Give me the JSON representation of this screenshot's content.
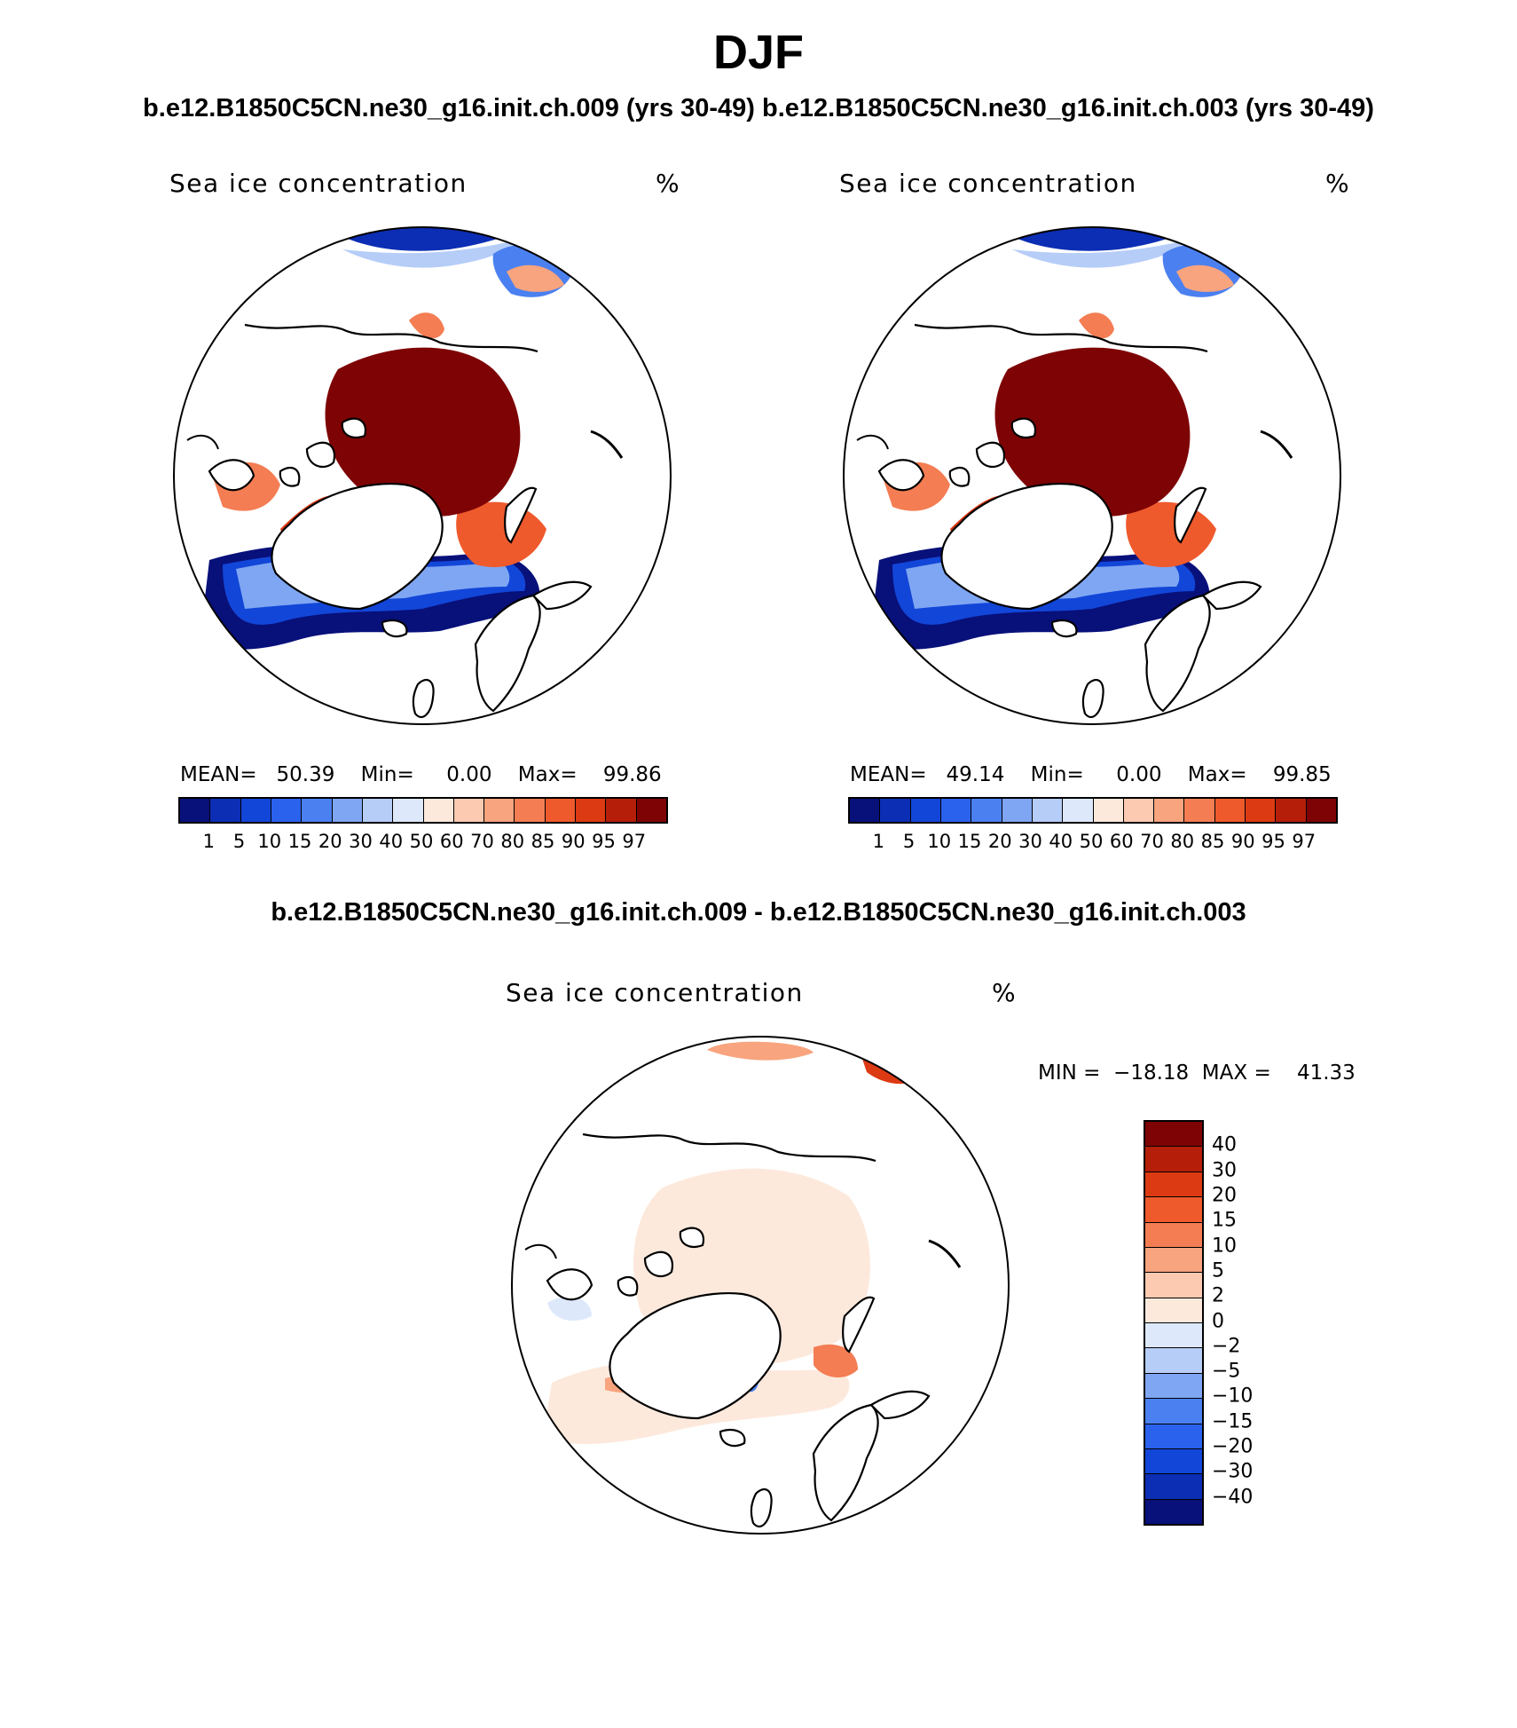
{
  "main_title": "DJF",
  "subtitle": "b.e12.B1850C5CN.ne30_g16.init.ch.009 (yrs 30-49)  b.e12.B1850C5CN.ne30_g16.init.ch.003 (yrs 30-49)",
  "diff_title": "b.e12.B1850C5CN.ne30_g16.init.ch.009 - b.e12.B1850C5CN.ne30_g16.init.ch.003",
  "colors": {
    "levels": [
      "#08107a",
      "#0c2eb4",
      "#1246d8",
      "#2a62ee",
      "#4b80f0",
      "#7fa6f2",
      "#b6cdf8",
      "#dde9fb",
      "#fde9dc",
      "#fbcab0",
      "#f8a47e",
      "#f47d53",
      "#ef5a2c",
      "#dc3a13",
      "#b51f0a",
      "#7e0305"
    ],
    "diff_levels": [
      "#7e0305",
      "#b51f0a",
      "#dc3a13",
      "#ef5a2c",
      "#f47d53",
      "#f8a47e",
      "#fbcab0",
      "#fde9dc",
      "#dde9fb",
      "#b6cdf8",
      "#7fa6f2",
      "#4b80f0",
      "#2a62ee",
      "#1246d8",
      "#0c2eb4",
      "#08107a"
    ]
  },
  "chart_data": [
    {
      "type": "heatmap",
      "projection": "north-polar-stereographic",
      "title": "Sea ice concentration",
      "units": "%",
      "case": "b.e12.B1850C5CN.ne30_g16.init.ch.009 (yrs 30-49)",
      "mean_label": "MEAN=",
      "mean": "50.39",
      "min_label": "Min=",
      "min": "0.00",
      "max_label": "Max=",
      "max": "99.86",
      "levels": [
        "1",
        "5",
        "10",
        "15",
        "20",
        "30",
        "40",
        "50",
        "60",
        "70",
        "80",
        "85",
        "90",
        "95",
        "97"
      ]
    },
    {
      "type": "heatmap",
      "projection": "north-polar-stereographic",
      "title": "Sea ice concentration",
      "units": "%",
      "case": "b.e12.B1850C5CN.ne30_g16.init.ch.003 (yrs 30-49)",
      "mean_label": "MEAN=",
      "mean": "49.14",
      "min_label": "Min=",
      "min": "0.00",
      "max_label": "Max=",
      "max": "99.85",
      "levels": [
        "1",
        "5",
        "10",
        "15",
        "20",
        "30",
        "40",
        "50",
        "60",
        "70",
        "80",
        "85",
        "90",
        "95",
        "97"
      ]
    },
    {
      "type": "heatmap",
      "projection": "north-polar-stereographic",
      "title": "Sea ice concentration",
      "units": "%",
      "case": "difference",
      "min_label": "MIN =",
      "min": "−18.18",
      "max_label": "MAX =",
      "max": "41.33",
      "levels": [
        "40",
        "30",
        "20",
        "15",
        "10",
        "5",
        "2",
        "0",
        "−2",
        "−5",
        "−10",
        "−15",
        "−20",
        "−30",
        "−40"
      ]
    }
  ]
}
